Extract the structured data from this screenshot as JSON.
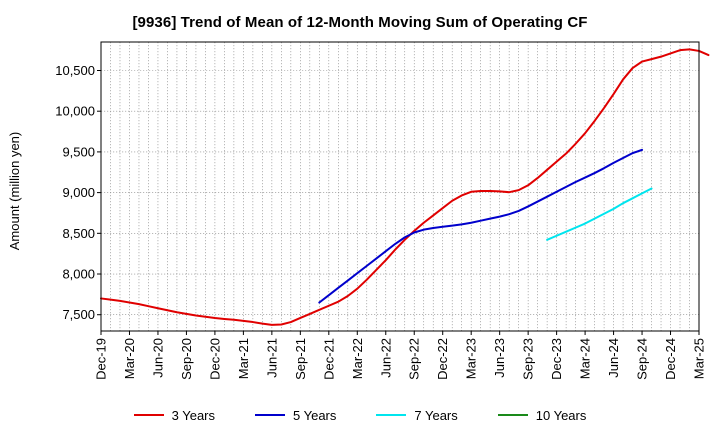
{
  "chart_data": {
    "type": "line",
    "title": "[9936]  Trend of Mean of 12-Month Moving Sum of Operating CF",
    "ylabel": "Amount (million yen)",
    "xlabel": "",
    "ylim": [
      7300,
      10850
    ],
    "yticks": [
      7500,
      8000,
      8500,
      9000,
      9500,
      10000,
      10500
    ],
    "ytick_labels": [
      "7,500",
      "8,000",
      "8,500",
      "9,000",
      "9,500",
      "10,000",
      "10,500"
    ],
    "x_start": "Dec-19",
    "x_end": "Mar-25",
    "xtick_labels": [
      "Dec-19",
      "Mar-20",
      "Jun-20",
      "Sep-20",
      "Dec-20",
      "Mar-21",
      "Jun-21",
      "Sep-21",
      "Dec-21",
      "Mar-22",
      "Jun-22",
      "Sep-22",
      "Dec-22",
      "Mar-23",
      "Jun-23",
      "Sep-23",
      "Dec-23",
      "Mar-24",
      "Jun-24",
      "Sep-24",
      "Dec-24",
      "Mar-25"
    ],
    "grid": true,
    "legend_position": "bottom",
    "series": [
      {
        "name": "3 Years",
        "color": "#e00000",
        "start": "Dec-19",
        "values": [
          7700,
          7685,
          7670,
          7650,
          7630,
          7605,
          7580,
          7555,
          7530,
          7510,
          7490,
          7475,
          7460,
          7448,
          7438,
          7425,
          7410,
          7390,
          7375,
          7380,
          7410,
          7460,
          7510,
          7560,
          7610,
          7660,
          7730,
          7820,
          7930,
          8050,
          8170,
          8300,
          8420,
          8530,
          8630,
          8720,
          8810,
          8900,
          8965,
          9010,
          9020,
          9020,
          9015,
          9005,
          9030,
          9090,
          9180,
          9280,
          9380,
          9480,
          9600,
          9730,
          9880,
          10040,
          10210,
          10390,
          10530,
          10610,
          10640,
          10670,
          10710,
          10750,
          10760,
          10740,
          10690
        ]
      },
      {
        "name": "5 Years",
        "color": "#0000cc",
        "start": "Nov-21",
        "values": [
          7650,
          7740,
          7830,
          7920,
          8010,
          8100,
          8190,
          8280,
          8370,
          8450,
          8510,
          8545,
          8565,
          8580,
          8595,
          8610,
          8630,
          8655,
          8680,
          8705,
          8735,
          8775,
          8830,
          8890,
          8950,
          9010,
          9070,
          9130,
          9185,
          9240,
          9300,
          9365,
          9425,
          9485,
          9525
        ]
      },
      {
        "name": "7 Years",
        "color": "#00e5ee",
        "start": "Nov-23",
        "values": [
          8420,
          8470,
          8520,
          8570,
          8620,
          8680,
          8740,
          8800,
          8870,
          8930,
          8990,
          9050
        ]
      },
      {
        "name": "10 Years",
        "color": "#1a8a1a",
        "start": "Dec-24",
        "values": []
      }
    ]
  }
}
